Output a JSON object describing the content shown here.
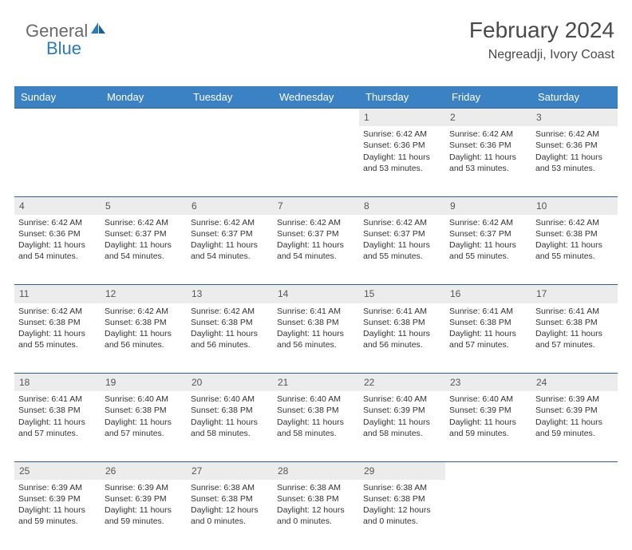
{
  "logo": {
    "text1": "General",
    "text2": "Blue"
  },
  "header": {
    "title": "February 2024",
    "subtitle": "Negreadji, Ivory Coast"
  },
  "styling": {
    "header_bg": "#3b82c4",
    "header_fg": "#ffffff",
    "daynum_bg": "#ececec",
    "row_sep": "#2f5f8a",
    "title_color": "#4a4a4a",
    "text_color": "#333333",
    "title_fontsize": 28,
    "subtitle_fontsize": 16,
    "dayheader_fontsize": 13,
    "cell_fontsize": 10.5
  },
  "days": [
    "Sunday",
    "Monday",
    "Tuesday",
    "Wednesday",
    "Thursday",
    "Friday",
    "Saturday"
  ],
  "weeks": [
    [
      null,
      null,
      null,
      null,
      {
        "n": "1",
        "sr": "6:42 AM",
        "ss": "6:36 PM",
        "dl": "11 hours and 53 minutes."
      },
      {
        "n": "2",
        "sr": "6:42 AM",
        "ss": "6:36 PM",
        "dl": "11 hours and 53 minutes."
      },
      {
        "n": "3",
        "sr": "6:42 AM",
        "ss": "6:36 PM",
        "dl": "11 hours and 53 minutes."
      }
    ],
    [
      {
        "n": "4",
        "sr": "6:42 AM",
        "ss": "6:36 PM",
        "dl": "11 hours and 54 minutes."
      },
      {
        "n": "5",
        "sr": "6:42 AM",
        "ss": "6:37 PM",
        "dl": "11 hours and 54 minutes."
      },
      {
        "n": "6",
        "sr": "6:42 AM",
        "ss": "6:37 PM",
        "dl": "11 hours and 54 minutes."
      },
      {
        "n": "7",
        "sr": "6:42 AM",
        "ss": "6:37 PM",
        "dl": "11 hours and 54 minutes."
      },
      {
        "n": "8",
        "sr": "6:42 AM",
        "ss": "6:37 PM",
        "dl": "11 hours and 55 minutes."
      },
      {
        "n": "9",
        "sr": "6:42 AM",
        "ss": "6:37 PM",
        "dl": "11 hours and 55 minutes."
      },
      {
        "n": "10",
        "sr": "6:42 AM",
        "ss": "6:38 PM",
        "dl": "11 hours and 55 minutes."
      }
    ],
    [
      {
        "n": "11",
        "sr": "6:42 AM",
        "ss": "6:38 PM",
        "dl": "11 hours and 55 minutes."
      },
      {
        "n": "12",
        "sr": "6:42 AM",
        "ss": "6:38 PM",
        "dl": "11 hours and 56 minutes."
      },
      {
        "n": "13",
        "sr": "6:42 AM",
        "ss": "6:38 PM",
        "dl": "11 hours and 56 minutes."
      },
      {
        "n": "14",
        "sr": "6:41 AM",
        "ss": "6:38 PM",
        "dl": "11 hours and 56 minutes."
      },
      {
        "n": "15",
        "sr": "6:41 AM",
        "ss": "6:38 PM",
        "dl": "11 hours and 56 minutes."
      },
      {
        "n": "16",
        "sr": "6:41 AM",
        "ss": "6:38 PM",
        "dl": "11 hours and 57 minutes."
      },
      {
        "n": "17",
        "sr": "6:41 AM",
        "ss": "6:38 PM",
        "dl": "11 hours and 57 minutes."
      }
    ],
    [
      {
        "n": "18",
        "sr": "6:41 AM",
        "ss": "6:38 PM",
        "dl": "11 hours and 57 minutes."
      },
      {
        "n": "19",
        "sr": "6:40 AM",
        "ss": "6:38 PM",
        "dl": "11 hours and 57 minutes."
      },
      {
        "n": "20",
        "sr": "6:40 AM",
        "ss": "6:38 PM",
        "dl": "11 hours and 58 minutes."
      },
      {
        "n": "21",
        "sr": "6:40 AM",
        "ss": "6:38 PM",
        "dl": "11 hours and 58 minutes."
      },
      {
        "n": "22",
        "sr": "6:40 AM",
        "ss": "6:39 PM",
        "dl": "11 hours and 58 minutes."
      },
      {
        "n": "23",
        "sr": "6:40 AM",
        "ss": "6:39 PM",
        "dl": "11 hours and 59 minutes."
      },
      {
        "n": "24",
        "sr": "6:39 AM",
        "ss": "6:39 PM",
        "dl": "11 hours and 59 minutes."
      }
    ],
    [
      {
        "n": "25",
        "sr": "6:39 AM",
        "ss": "6:39 PM",
        "dl": "11 hours and 59 minutes."
      },
      {
        "n": "26",
        "sr": "6:39 AM",
        "ss": "6:39 PM",
        "dl": "11 hours and 59 minutes."
      },
      {
        "n": "27",
        "sr": "6:38 AM",
        "ss": "6:38 PM",
        "dl": "12 hours and 0 minutes."
      },
      {
        "n": "28",
        "sr": "6:38 AM",
        "ss": "6:38 PM",
        "dl": "12 hours and 0 minutes."
      },
      {
        "n": "29",
        "sr": "6:38 AM",
        "ss": "6:38 PM",
        "dl": "12 hours and 0 minutes."
      },
      null,
      null
    ]
  ],
  "labels": {
    "sunrise": "Sunrise:",
    "sunset": "Sunset:",
    "daylight": "Daylight:"
  }
}
